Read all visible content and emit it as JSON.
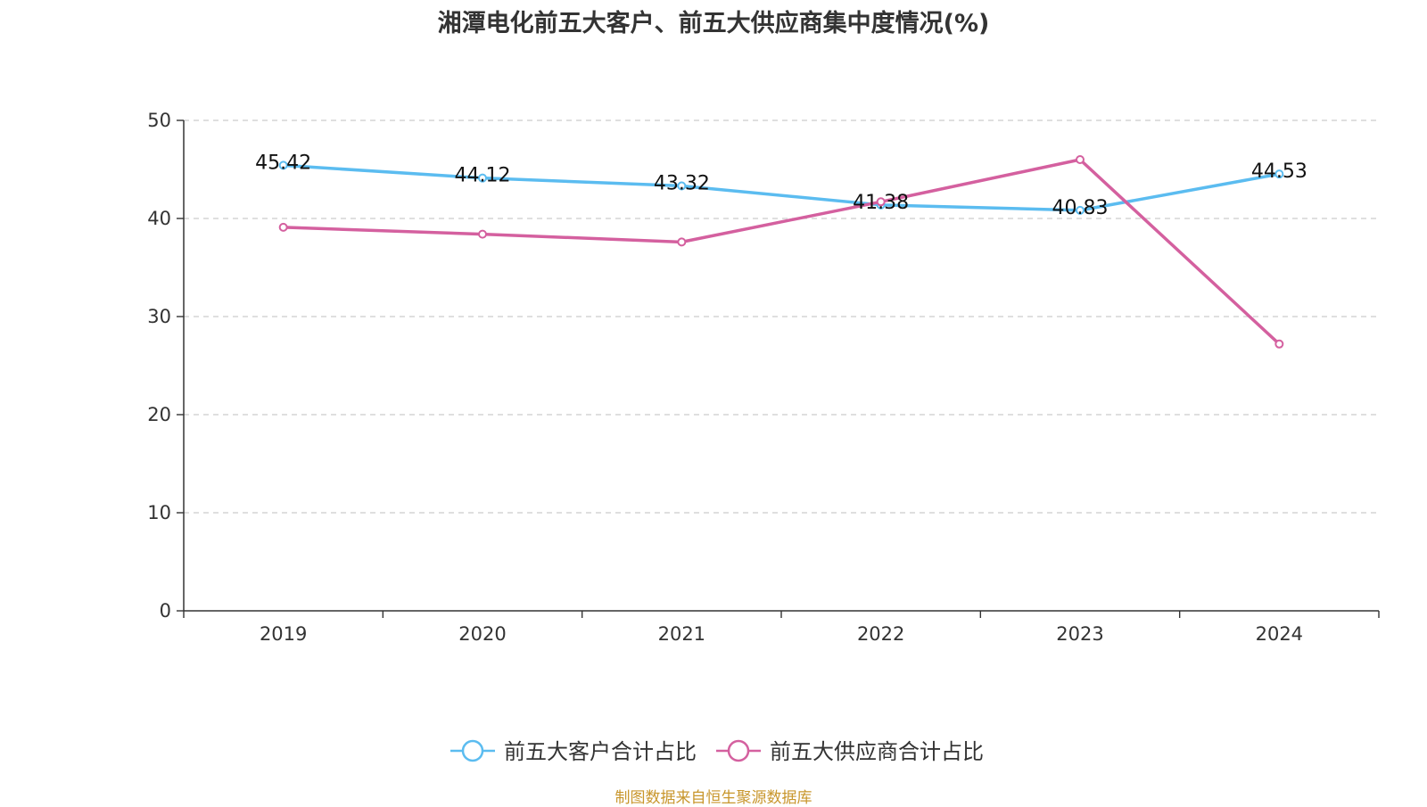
{
  "chart_data": {
    "type": "line",
    "title": "湘潭电化前五大客户、前五大供应商集中度情况(%)",
    "categories": [
      "2019",
      "2020",
      "2021",
      "2022",
      "2023",
      "2024"
    ],
    "series": [
      {
        "name": "前五大客户合计占比",
        "color": "#5bbcf0",
        "values": [
          45.42,
          44.12,
          43.32,
          41.38,
          40.83,
          44.53
        ],
        "labels": [
          "45.42",
          "44.12",
          "43.32",
          "41.38",
          "40.83",
          "44.53"
        ]
      },
      {
        "name": "前五大供应商合计占比",
        "color": "#d4609f",
        "values": [
          39.1,
          38.4,
          37.6,
          41.7,
          46.0,
          27.2
        ]
      }
    ],
    "y_ticks": [
      "0",
      "10",
      "20",
      "30",
      "40",
      "50"
    ],
    "ylim": [
      0,
      50
    ],
    "grid": true,
    "legend_position": "bottom"
  },
  "source_note": "制图数据来自恒生聚源数据库"
}
